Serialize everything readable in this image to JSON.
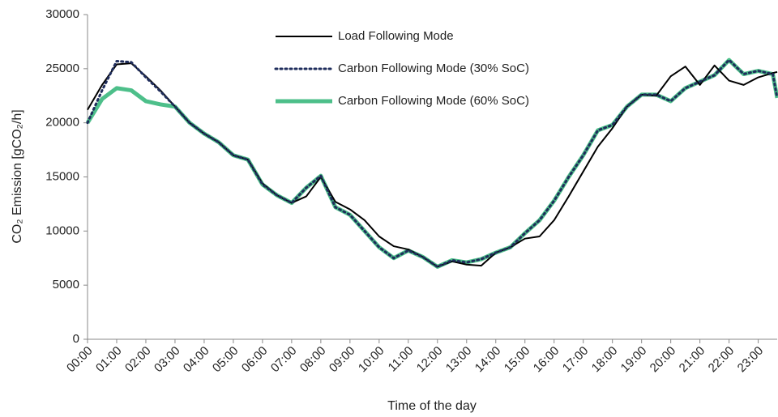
{
  "chart_data": {
    "type": "line",
    "y_label": "CO₂ Emission [gCO₂/h]",
    "x_label": "Time of the day",
    "x": [
      0,
      0.5,
      1,
      1.5,
      2,
      2.5,
      3,
      3.5,
      4,
      4.5,
      5,
      5.5,
      6,
      6.5,
      7,
      7.5,
      8,
      8.5,
      9,
      9.5,
      10,
      10.5,
      11,
      11.5,
      12,
      12.5,
      13,
      13.5,
      14,
      14.5,
      15,
      15.5,
      16,
      16.5,
      17,
      17.5,
      18,
      18.5,
      19,
      19.5,
      20,
      20.5,
      21,
      21.5,
      22,
      22.5,
      23,
      23.5,
      23.65
    ],
    "series": [
      {
        "name": "Load Following Mode",
        "color": "#000000",
        "line_style": "solid",
        "line_width": 2,
        "values": [
          21200,
          23500,
          25400,
          25500,
          24300,
          23000,
          21500,
          20000,
          19000,
          18200,
          17000,
          16600,
          14400,
          13300,
          12600,
          13200,
          15000,
          12700,
          12000,
          11000,
          9500,
          8600,
          8300,
          7600,
          6700,
          7200,
          6900,
          6800,
          8000,
          8500,
          9300,
          9500,
          11000,
          13200,
          15500,
          17800,
          19500,
          21500,
          22600,
          22500,
          24300,
          25200,
          23500,
          25300,
          23900,
          23500,
          24200,
          24600,
          24700
        ]
      },
      {
        "name": "Carbon Following Mode (30% SoC)",
        "color": "#1f2d5c",
        "line_style": "dotted",
        "line_width": 3,
        "values": [
          20000,
          23000,
          25700,
          25600,
          24200,
          22900,
          21500,
          20000,
          19000,
          18200,
          17000,
          16600,
          14300,
          13300,
          12600,
          14000,
          15100,
          12200,
          11500,
          10000,
          8500,
          7500,
          8200,
          7600,
          6700,
          7300,
          7100,
          7400,
          8000,
          8500,
          9800,
          11000,
          12800,
          15000,
          17000,
          19300,
          19800,
          21500,
          22600,
          22600,
          22000,
          23200,
          23800,
          24400,
          25800,
          24500,
          24800,
          24500,
          22300
        ]
      },
      {
        "name": "Carbon Following Mode (60% SoC)",
        "color": "#4dbf8a",
        "line_style": "solid",
        "line_width": 5,
        "values": [
          20000,
          22200,
          23200,
          23000,
          22000,
          21700,
          21500,
          20000,
          19000,
          18200,
          17000,
          16600,
          14300,
          13300,
          12600,
          14000,
          15100,
          12200,
          11500,
          10000,
          8500,
          7500,
          8200,
          7600,
          6700,
          7300,
          7100,
          7400,
          8000,
          8500,
          9800,
          11000,
          12800,
          15000,
          17000,
          19300,
          19800,
          21500,
          22600,
          22600,
          22000,
          23200,
          23800,
          24400,
          25800,
          24500,
          24800,
          24500,
          22300
        ]
      }
    ],
    "xlim": [
      0,
      23.65
    ],
    "xticks": [
      {
        "value": 0,
        "label": "00:00"
      },
      {
        "value": 1,
        "label": "01:00"
      },
      {
        "value": 2,
        "label": "02:00"
      },
      {
        "value": 3,
        "label": "03:00"
      },
      {
        "value": 4,
        "label": "04:00"
      },
      {
        "value": 5,
        "label": "05:00"
      },
      {
        "value": 6,
        "label": "06:00"
      },
      {
        "value": 7,
        "label": "07:00"
      },
      {
        "value": 8,
        "label": "08:00"
      },
      {
        "value": 9,
        "label": "09:00"
      },
      {
        "value": 10,
        "label": "10:00"
      },
      {
        "value": 11,
        "label": "11:00"
      },
      {
        "value": 12,
        "label": "12:00"
      },
      {
        "value": 13,
        "label": "13:00"
      },
      {
        "value": 14,
        "label": "14:00"
      },
      {
        "value": 15,
        "label": "15:00"
      },
      {
        "value": 16,
        "label": "16:00"
      },
      {
        "value": 17,
        "label": "17:00"
      },
      {
        "value": 18,
        "label": "18:00"
      },
      {
        "value": 19,
        "label": "19:00"
      },
      {
        "value": 20,
        "label": "20:00"
      },
      {
        "value": 21,
        "label": "21:00"
      },
      {
        "value": 22,
        "label": "22:00"
      },
      {
        "value": 23,
        "label": "23:00"
      }
    ],
    "ylim": [
      0,
      30000
    ],
    "yticks": [
      0,
      5000,
      10000,
      15000,
      20000,
      25000,
      30000
    ],
    "grid": false,
    "legend": "top"
  }
}
